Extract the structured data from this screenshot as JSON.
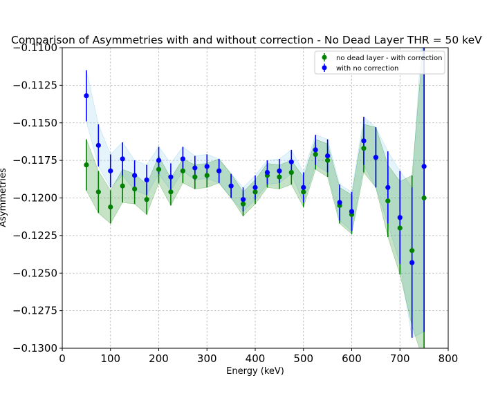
{
  "chart_data": {
    "type": "scatter",
    "title": "Comparison of Asymmetries with and without correction - No Dead Layer THR = 50 keV",
    "xlabel": "Energy (keV)",
    "ylabel": "Asymmetries",
    "xlim": [
      0,
      800
    ],
    "ylim": [
      -0.13,
      -0.11
    ],
    "xticks": [
      "0",
      "100",
      "200",
      "300",
      "400",
      "500",
      "600",
      "700",
      "800"
    ],
    "yticks": [
      "−0.1100",
      "−0.1125",
      "−0.1150",
      "−0.1175",
      "−0.1200",
      "−0.1225",
      "−0.1250",
      "−0.1275",
      "−0.1300"
    ],
    "grid": true,
    "legend_position": "top-right",
    "x": [
      50,
      75,
      100,
      125,
      150,
      175,
      200,
      225,
      250,
      275,
      300,
      325,
      350,
      375,
      400,
      425,
      450,
      475,
      500,
      525,
      550,
      575,
      600,
      625,
      650,
      675,
      700,
      725,
      750
    ],
    "series": [
      {
        "name": "no dead layer - with correction",
        "color": "#008000",
        "values": [
          -0.1178,
          -0.1196,
          -0.1206,
          -0.1192,
          -0.1194,
          -0.1201,
          -0.1181,
          -0.1196,
          -0.1182,
          -0.1186,
          -0.1185,
          -0.1182,
          -0.1192,
          -0.1204,
          -0.1196,
          -0.1185,
          -0.1186,
          -0.1183,
          -0.1196,
          -0.1171,
          -0.1175,
          -0.1205,
          -0.1211,
          -0.1167,
          -0.1173,
          -0.1202,
          -0.122,
          -0.1235,
          -0.12
        ],
        "errors": [
          0.0017,
          0.0014,
          0.0011,
          0.0011,
          0.001,
          0.001,
          0.0009,
          0.0009,
          0.0008,
          0.0008,
          0.0008,
          0.0008,
          0.0008,
          0.0008,
          0.0008,
          0.0008,
          0.0008,
          0.0008,
          0.001,
          0.001,
          0.0011,
          0.0012,
          0.0013,
          0.0016,
          0.002,
          0.0024,
          0.0031,
          0.005,
          0.011
        ]
      },
      {
        "name": "with no correction",
        "color": "#0000ff",
        "values": [
          -0.1132,
          -0.1165,
          -0.1182,
          -0.1174,
          -0.1185,
          -0.1188,
          -0.1175,
          -0.1186,
          -0.1174,
          -0.118,
          -0.1179,
          -0.1182,
          -0.1192,
          -0.1201,
          -0.1193,
          -0.1183,
          -0.1182,
          -0.1176,
          -0.1193,
          -0.1168,
          -0.1172,
          -0.1203,
          -0.1209,
          -0.1162,
          -0.1173,
          -0.1193,
          -0.1213,
          -0.1243,
          -0.1179
        ],
        "errors": [
          0.0017,
          0.0014,
          0.0011,
          0.0011,
          0.001,
          0.001,
          0.0009,
          0.0009,
          0.0008,
          0.0008,
          0.0008,
          0.0008,
          0.0008,
          0.0008,
          0.0008,
          0.0008,
          0.0008,
          0.0008,
          0.001,
          0.001,
          0.0011,
          0.0012,
          0.0013,
          0.0016,
          0.002,
          0.0024,
          0.0031,
          0.005,
          0.011
        ]
      }
    ]
  }
}
